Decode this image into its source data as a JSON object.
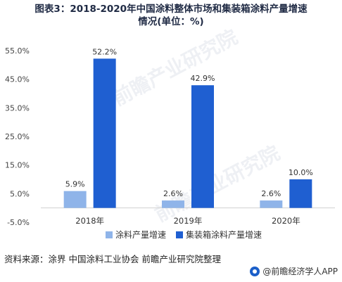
{
  "title": {
    "line1": "图表3：2018-2020年中国涂料整体市场和集装箱涂料产量增速",
    "line2": "情况(单位：%)"
  },
  "chart_data": {
    "type": "bar",
    "categories": [
      "2018年",
      "2019年",
      "2020年"
    ],
    "series": [
      {
        "name": "涂料产量增速",
        "values": [
          5.9,
          2.6,
          2.6
        ],
        "labels": [
          "5.9%",
          "2.6%",
          "2.6%"
        ],
        "color": "#8fb4e9"
      },
      {
        "name": "集装箱涂料产量增速",
        "values": [
          52.2,
          42.9,
          10.0
        ],
        "labels": [
          "52.2%",
          "42.9%",
          "10.0%"
        ],
        "color": "#1f5fd1"
      }
    ],
    "yticks": [
      "-5.0%",
      "5.0%",
      "15.0%",
      "25.0%",
      "35.0%",
      "45.0%",
      "55.0%"
    ],
    "ytick_values": [
      -5,
      5,
      15,
      25,
      35,
      45,
      55
    ],
    "ylim": [
      -5,
      55
    ],
    "grid": false,
    "legend_position": "bottom"
  },
  "source": "资料来源：涂界 中国涂料工业协会 前瞻产业研究院整理",
  "brand": "@前瞻经济学人APP",
  "watermarks": [
    "前瞻产业研究院",
    "前瞻产业研究院"
  ]
}
